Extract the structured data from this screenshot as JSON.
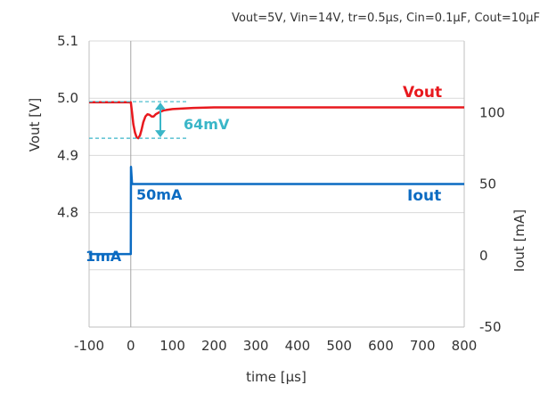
{
  "conditions": "Vout=5V, Vin=14V, tr=0.5μs, Cin=0.1μF, Cout=10μF",
  "chart_data": {
    "type": "line",
    "xlabel": "time [μs]",
    "ylabel_left": "Vout [V]",
    "ylabel_right": "Iout [mA]",
    "xlim": [
      -100,
      800
    ],
    "ylim_left": [
      4.6,
      5.1
    ],
    "ylim_right": [
      -50,
      150
    ],
    "x_ticks": [
      "-100",
      "0",
      "100",
      "200",
      "300",
      "400",
      "500",
      "600",
      "700",
      "800"
    ],
    "y_left_ticks": [
      {
        "value": 5.1,
        "label": "5.1"
      },
      {
        "value": 5.0,
        "label": "5.0"
      },
      {
        "value": 4.9,
        "label": "4.9"
      },
      {
        "value": 4.8,
        "label": "4.8"
      }
    ],
    "y_right_ticks": [
      {
        "value": 100,
        "label": "100"
      },
      {
        "value": 50,
        "label": "50"
      },
      {
        "value": 0,
        "label": "0"
      },
      {
        "value": -50,
        "label": "-50"
      }
    ],
    "grid": "horizontal",
    "series": [
      {
        "name": "Vout",
        "axis": "left",
        "color": "#e8191e",
        "x": [
          -100,
          -20,
          0,
          3,
          6,
          10,
          14,
          18,
          22,
          26,
          30,
          35,
          40,
          45,
          50,
          55,
          60,
          70,
          80,
          100,
          150,
          200,
          300,
          400,
          500,
          600,
          700,
          800
        ],
        "y": [
          4.993,
          4.993,
          4.993,
          4.975,
          4.955,
          4.94,
          4.932,
          4.93,
          4.935,
          4.945,
          4.958,
          4.968,
          4.972,
          4.971,
          4.968,
          4.968,
          4.972,
          4.976,
          4.979,
          4.981,
          4.983,
          4.984,
          4.984,
          4.984,
          4.984,
          4.984,
          4.984,
          4.984
        ]
      },
      {
        "name": "Iout",
        "axis": "right",
        "color": "#0b6bc2",
        "x": [
          -100,
          -0.5,
          0,
          0.5,
          3,
          800
        ],
        "y": [
          1,
          1,
          1,
          62,
          50,
          50
        ]
      }
    ],
    "annotations": [
      {
        "text": "Vout",
        "color": "#e8191e"
      },
      {
        "text": "Iout",
        "color": "#0b6bc2"
      },
      {
        "text": "50mA",
        "color": "#0b6bc2"
      },
      {
        "text": "1mA",
        "color": "#0b6bc2"
      },
      {
        "text": "64mV",
        "color": "#3ab6c8"
      }
    ]
  }
}
